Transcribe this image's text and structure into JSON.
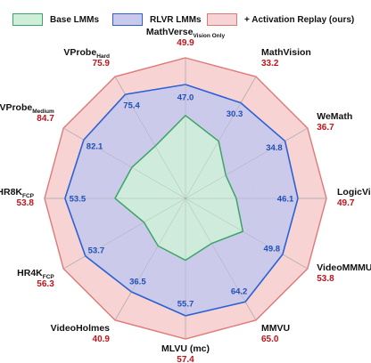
{
  "legend": {
    "base": "Base LMMs",
    "rlvr": "RLVR LMMs",
    "ours": "+ Activation Replay (ours)"
  },
  "colors": {
    "base_fill": "#cfeed9",
    "base_line": "#3aa566",
    "rlvr_fill": "#c9c9ec",
    "rlvr_line": "#2a62d3",
    "ours_fill": "#f8d3d3",
    "ours_line": "#e07878",
    "ours_text": "#c0141b",
    "rlvr_text": "#1f4fb4",
    "grid": "#b0b0b0"
  },
  "chart_data": {
    "type": "radar",
    "axes": [
      {
        "name": "MathVerse",
        "sub": "Vision Only"
      },
      {
        "name": "MathVision",
        "sub": ""
      },
      {
        "name": "WeMath",
        "sub": ""
      },
      {
        "name": "LogicVista",
        "sub": ""
      },
      {
        "name": "VideoMMMU",
        "sub": ""
      },
      {
        "name": "MMVU",
        "sub": ""
      },
      {
        "name": "MLVU (mc)",
        "sub": ""
      },
      {
        "name": "VideoHolmes",
        "sub": ""
      },
      {
        "name": "HR4K",
        "sub": "FCP"
      },
      {
        "name": "HR8K",
        "sub": "FCP"
      },
      {
        "name": "VProbe",
        "sub": "Medium"
      },
      {
        "name": "VProbe",
        "sub": "Hard"
      }
    ],
    "series": [
      {
        "name": "Base LMMs",
        "values": [
          0.59,
          0.47,
          0.33,
          0.36,
          0.47,
          0.37,
          0.44,
          0.39,
          0.34,
          0.5,
          0.44,
          0.43
        ]
      },
      {
        "name": "RLVR LMMs",
        "values": [
          47.0,
          30.3,
          34.8,
          46.1,
          49.8,
          64.2,
          55.7,
          36.5,
          53.7,
          53.5,
          82.1,
          75.4
        ]
      },
      {
        "name": "+ Activation Replay (ours)",
        "values": [
          49.9,
          33.2,
          36.7,
          49.7,
          53.8,
          65.0,
          57.4,
          40.9,
          56.3,
          53.8,
          84.7,
          75.9
        ]
      }
    ]
  }
}
